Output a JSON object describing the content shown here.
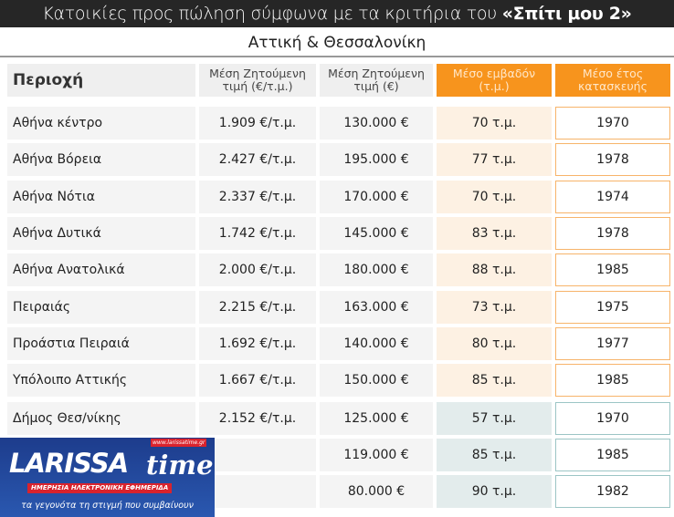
{
  "title": {
    "prefix": "Κατοικίες προς πώληση σύμφωνα με τα κριτήρια του ",
    "bold": "«Σπίτι μου 2»"
  },
  "subtitle": "Αττική & Θεσσαλονίκη",
  "headers": [
    "Περιοχή",
    "Μέση Ζητούμενη τιμή (€/τ.μ.)",
    "Μέση Ζητούμενη τιμή (€)",
    "Μέσο εμβαδόν (τ.μ.)",
    "Μέσο έτος κατασκευής"
  ],
  "colors": {
    "accent": "#f7941d",
    "title_bg": "#262626",
    "attica_area_bg": "#fdf1e3",
    "thess_area_bg": "#e3ecec"
  },
  "attica_rows": [
    [
      "Αθήνα κέντρο",
      "1.909 €/τ.μ.",
      "130.000 €",
      "70 τ.μ.",
      "1970"
    ],
    [
      "Αθήνα Βόρεια",
      "2.427 €/τ.μ.",
      "195.000 €",
      "77 τ.μ.",
      "1978"
    ],
    [
      "Αθήνα Νότια",
      "2.337 €/τ.μ.",
      "170.000 €",
      "70 τ.μ.",
      "1974"
    ],
    [
      "Αθήνα Δυτικά",
      "1.742 €/τ.μ.",
      "145.000 €",
      "83 τ.μ.",
      "1978"
    ],
    [
      "Αθήνα Ανατολικά",
      "2.000 €/τ.μ.",
      "180.000 €",
      "88 τ.μ.",
      "1985"
    ],
    [
      "Πειραιάς",
      "2.215 €/τ.μ.",
      "163.000 €",
      "73 τ.μ.",
      "1975"
    ],
    [
      "Προάστια Πειραιά",
      "1.692 €/τ.μ.",
      "140.000 €",
      "80 τ.μ.",
      "1977"
    ],
    [
      "Υπόλοιπο Αττικής",
      "1.667 €/τ.μ.",
      "150.000 €",
      "85 τ.μ.",
      "1985"
    ]
  ],
  "thess_rows": [
    [
      "Δήμος Θεσ/νίκης",
      "2.152 €/τ.μ.",
      "125.000 €",
      "57 τ.μ.",
      "1970"
    ],
    [
      "",
      "",
      "119.000 €",
      "85 τ.μ.",
      "1985"
    ],
    [
      "",
      "",
      "80.000 €",
      "90 τ.μ.",
      "1982"
    ]
  ],
  "logo": {
    "name": "LARISSA",
    "name2": "time",
    "url": "www.larissatime.gr",
    "tagline": "ΗΜΕΡΗΣΙΑ ΗΛΕΚΤΡΟΝΙΚΗ ΕΦΗΜΕΡΙΔΑ",
    "slogan": "τα γεγονότα τη στιγμή που συμβαίνουν"
  }
}
